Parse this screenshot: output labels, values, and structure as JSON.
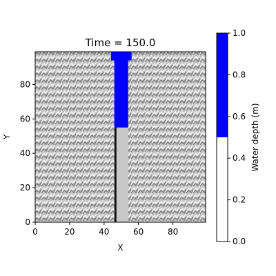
{
  "chart_data": {
    "type": "heatmap",
    "title": "Time = 150.0",
    "xlabel": "X",
    "ylabel": "Y",
    "xlim": [
      0,
      99
    ],
    "ylim": [
      0,
      99
    ],
    "xticks": [
      0,
      20,
      40,
      60,
      80
    ],
    "yticks": [
      0,
      20,
      40,
      60,
      80
    ],
    "background": "textured grey terrain (elevation hillshade)",
    "channel": {
      "x_range": [
        46,
        53
      ],
      "y_range": [
        0,
        99
      ]
    },
    "water_region": {
      "x_range": [
        46,
        53
      ],
      "y_range": [
        55,
        99
      ]
    },
    "inlet_cap": {
      "x_range": [
        44,
        55
      ],
      "y_range": [
        94,
        99
      ]
    },
    "colorbar": {
      "label": "Water depth (m)",
      "range": [
        0.0,
        1.0
      ],
      "ticks": [
        0.0,
        0.2,
        0.4,
        0.6,
        0.8,
        1.0
      ],
      "tick_labels": [
        "0.0",
        "0.2",
        "0.4",
        "0.6",
        "0.8",
        "1.0"
      ],
      "threshold": 0.5,
      "color_below": "#ffffff",
      "color_above": "#0000ff"
    },
    "colors": {
      "water": "#0000ff",
      "channel_bed": "#c8c8c8",
      "channel_edge": "#111111",
      "terrain_light": "#d4d4d4",
      "terrain_dark": "#8a8a8a"
    }
  }
}
